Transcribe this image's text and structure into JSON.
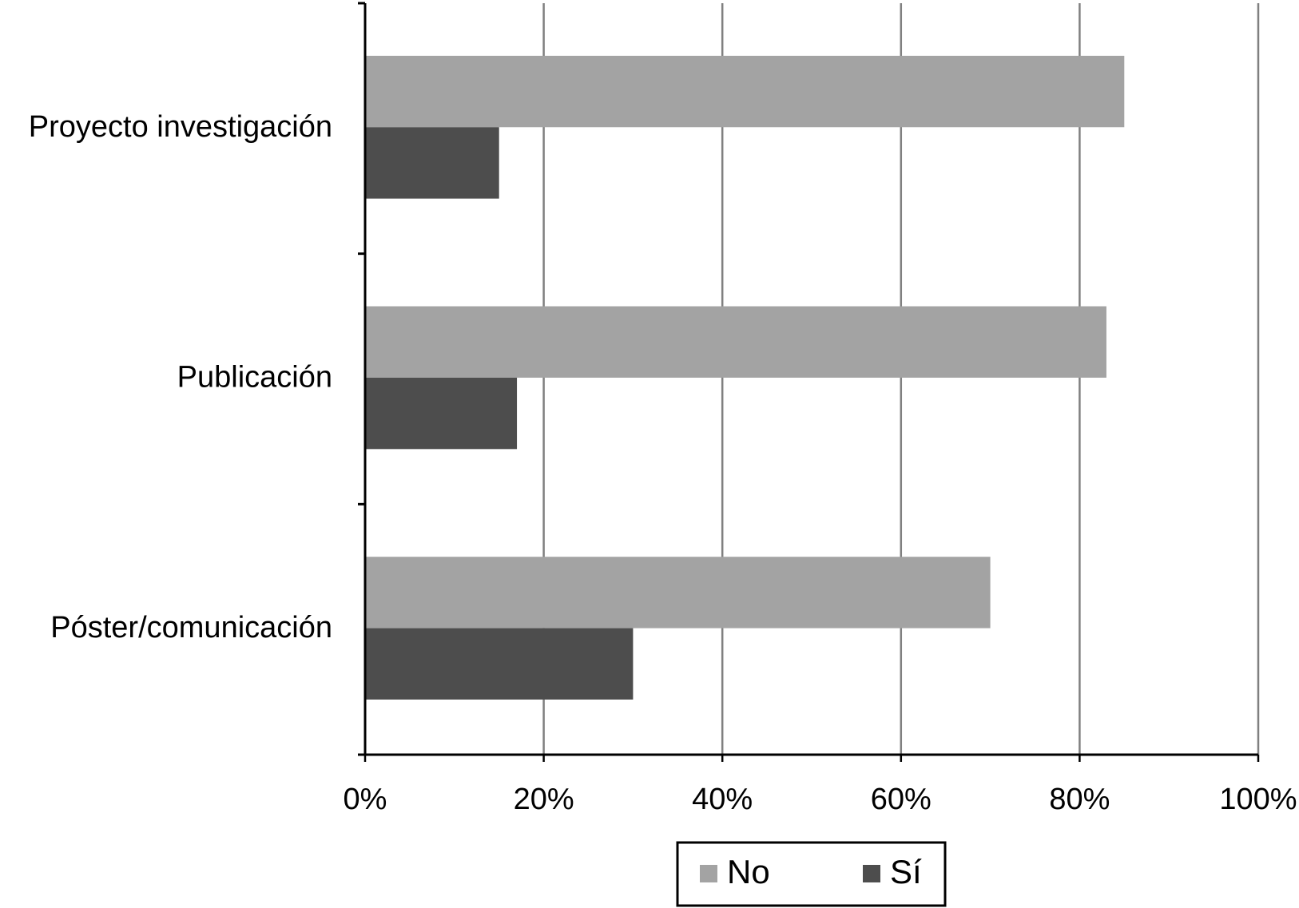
{
  "chart_data": {
    "type": "hbar",
    "categories": [
      "Proyecto investigación",
      "Publicación",
      "Póster/comunicación"
    ],
    "series": [
      {
        "name": "No",
        "color": "#a3a3a3",
        "values": [
          85,
          83,
          70
        ]
      },
      {
        "name": "Sí",
        "color": "#4d4d4d",
        "values": [
          15,
          17,
          30
        ]
      }
    ],
    "xlim": [
      0,
      100
    ],
    "xticks": [
      {
        "value": 0,
        "label": "0%"
      },
      {
        "value": 20,
        "label": "20%"
      },
      {
        "value": 40,
        "label": "40%"
      },
      {
        "value": 60,
        "label": "60%"
      },
      {
        "value": 80,
        "label": "80%"
      },
      {
        "value": 100,
        "label": "100%"
      }
    ],
    "grid": true,
    "legend": "bottom"
  }
}
